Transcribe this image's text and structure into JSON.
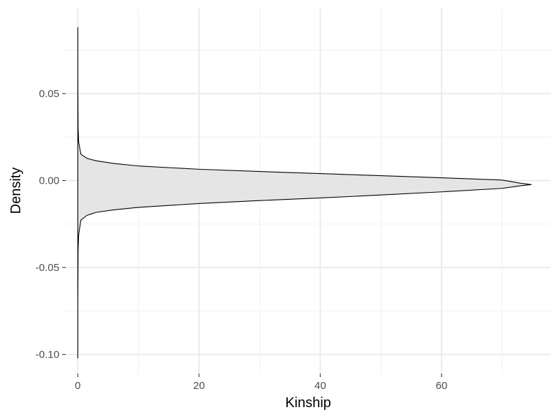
{
  "chart_data": {
    "type": "area",
    "title": "",
    "xlabel": "Kinship",
    "ylabel": "Density",
    "xlim": [
      -2,
      78
    ],
    "ylim": [
      -0.111,
      0.099
    ],
    "grid": true,
    "x_ticks": [
      0,
      20,
      40,
      60
    ],
    "x_tick_labels": [
      "0",
      "20",
      "40",
      "60"
    ],
    "y_ticks": [
      -0.1,
      -0.05,
      0.0,
      0.05
    ],
    "y_tick_labels": [
      "-0.10",
      "-0.05",
      "0.00",
      "0.05"
    ],
    "series": [
      {
        "fill": "#e5e5e5",
        "stroke": "#000000",
        "points": [
          {
            "x": 0.0,
            "y": 0.088
          },
          {
            "x": 0.0,
            "y": 0.06
          },
          {
            "x": 0.05,
            "y": 0.03
          },
          {
            "x": 0.15,
            "y": 0.022
          },
          {
            "x": 0.5,
            "y": 0.0152
          },
          {
            "x": 1.5,
            "y": 0.0128
          },
          {
            "x": 3,
            "y": 0.0114
          },
          {
            "x": 6,
            "y": 0.0098
          },
          {
            "x": 10,
            "y": 0.0084
          },
          {
            "x": 20,
            "y": 0.0065
          },
          {
            "x": 30,
            "y": 0.0052
          },
          {
            "x": 40,
            "y": 0.004
          },
          {
            "x": 50,
            "y": 0.0028
          },
          {
            "x": 60,
            "y": 0.0016
          },
          {
            "x": 70,
            "y": 0.0003
          },
          {
            "x": 73,
            "y": -0.0015
          },
          {
            "x": 74.8,
            "y": -0.0023
          },
          {
            "x": 73,
            "y": -0.003
          },
          {
            "x": 70,
            "y": -0.0045
          },
          {
            "x": 60,
            "y": -0.0065
          },
          {
            "x": 50,
            "y": -0.0083
          },
          {
            "x": 40,
            "y": -0.01
          },
          {
            "x": 30,
            "y": -0.0115
          },
          {
            "x": 20,
            "y": -0.0132
          },
          {
            "x": 10,
            "y": -0.0154
          },
          {
            "x": 6,
            "y": -0.0168
          },
          {
            "x": 3,
            "y": -0.0183
          },
          {
            "x": 1.5,
            "y": -0.02
          },
          {
            "x": 0.5,
            "y": -0.0228
          },
          {
            "x": 0.15,
            "y": -0.031
          },
          {
            "x": 0.05,
            "y": -0.04
          },
          {
            "x": 0.0,
            "y": -0.07
          },
          {
            "x": 0.0,
            "y": -0.102
          }
        ]
      }
    ]
  }
}
